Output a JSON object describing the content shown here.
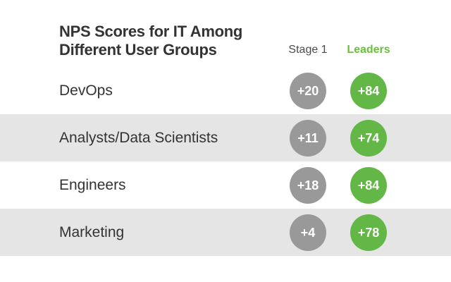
{
  "chart_data": {
    "type": "table",
    "title_lines": [
      "NPS Scores for IT Among",
      "Different User Groups"
    ],
    "columns": [
      "Stage 1",
      "Leaders"
    ],
    "rows": [
      {
        "group": "DevOps",
        "stage1": "+20",
        "leaders": "+84"
      },
      {
        "group": "Analysts/Data Scientists",
        "stage1": "+11",
        "leaders": "+74"
      },
      {
        "group": "Engineers",
        "stage1": "+18",
        "leaders": "+84"
      },
      {
        "group": "Marketing",
        "stage1": "+4",
        "leaders": "+78"
      }
    ]
  },
  "colors": {
    "stage1": "#999999",
    "leaders": "#63b746",
    "row_shade": "#e5e5e5",
    "text": "#333333"
  }
}
